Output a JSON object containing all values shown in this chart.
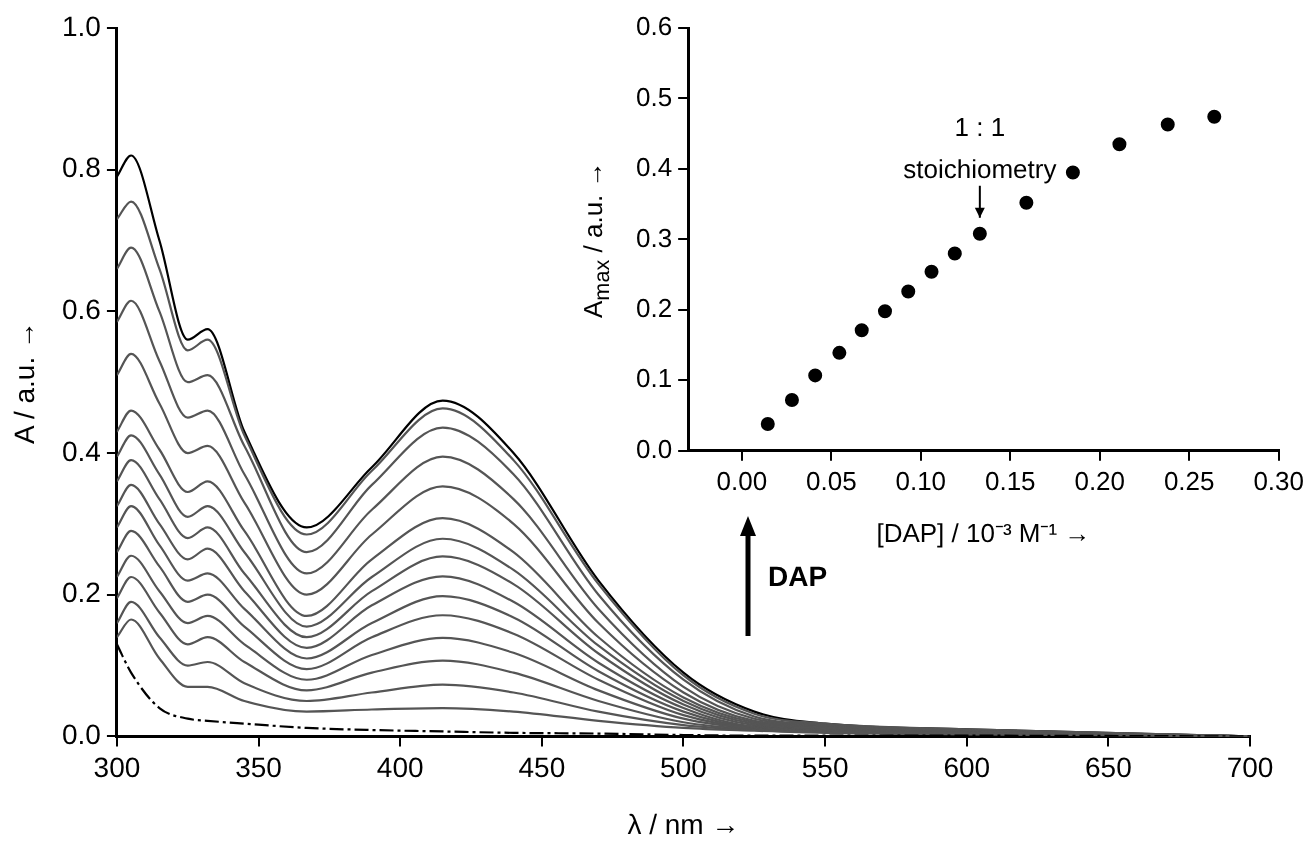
{
  "chart_data": [
    {
      "type": "line",
      "xlabel": "λ / nm →",
      "ylabel": "A / a.u. →",
      "annotations": [
        "DAP"
      ],
      "x": [
        300,
        305,
        315,
        325,
        332,
        345,
        367,
        390,
        415,
        440,
        470,
        500,
        525,
        550,
        600,
        700
      ],
      "xlim": [
        300,
        700
      ],
      "xticks": [
        300,
        350,
        400,
        450,
        500,
        550,
        600,
        650,
        700
      ],
      "ylim": [
        0,
        1
      ],
      "yticks": [
        {
          "value": 0,
          "label": "0.0"
        },
        {
          "value": 0.2,
          "label": "0.2"
        },
        {
          "value": 0.4,
          "label": "0.4"
        },
        {
          "value": 0.6,
          "label": "0.6"
        },
        {
          "value": 0.8,
          "label": "0.8"
        },
        {
          "value": 1,
          "label": "1.0"
        }
      ],
      "grid": false,
      "legend": false,
      "marker": "none",
      "line_style": "solid",
      "series": [
        {
          "color": "#000000",
          "line_style": "dashed",
          "values": [
            0.13,
            0.09,
            0.04,
            0.025,
            0.022,
            0.018,
            0.012,
            0.009,
            0.007,
            0.005,
            0.004,
            0.002,
            0.001,
            0.001,
            0.001,
            0
          ]
        },
        {
          "color": "#555555",
          "values": [
            0.14,
            0.165,
            0.11,
            0.07,
            0.07,
            0.05,
            0.035,
            0.038,
            0.04,
            0.035,
            0.022,
            0.012,
            0.008,
            0.005,
            0.003,
            0
          ]
        },
        {
          "color": "#555555",
          "values": [
            0.16,
            0.19,
            0.14,
            0.1,
            0.105,
            0.075,
            0.05,
            0.062,
            0.073,
            0.062,
            0.035,
            0.016,
            0.009,
            0.006,
            0.004,
            0
          ]
        },
        {
          "color": "#555555",
          "values": [
            0.195,
            0.225,
            0.175,
            0.13,
            0.14,
            0.105,
            0.065,
            0.09,
            0.107,
            0.09,
            0.05,
            0.02,
            0.01,
            0.007,
            0.004,
            0
          ]
        },
        {
          "color": "#555555",
          "values": [
            0.225,
            0.255,
            0.205,
            0.16,
            0.17,
            0.13,
            0.08,
            0.115,
            0.139,
            0.118,
            0.065,
            0.025,
            0.011,
            0.008,
            0.005,
            0
          ]
        },
        {
          "color": "#555555",
          "values": [
            0.26,
            0.29,
            0.24,
            0.19,
            0.2,
            0.155,
            0.095,
            0.14,
            0.171,
            0.145,
            0.08,
            0.03,
            0.012,
            0.009,
            0.005,
            0
          ]
        },
        {
          "color": "#555555",
          "values": [
            0.295,
            0.325,
            0.27,
            0.22,
            0.23,
            0.18,
            0.11,
            0.16,
            0.198,
            0.168,
            0.092,
            0.035,
            0.013,
            0.01,
            0.006,
            0
          ]
        },
        {
          "color": "#555555",
          "values": [
            0.325,
            0.355,
            0.3,
            0.25,
            0.265,
            0.205,
            0.125,
            0.185,
            0.226,
            0.19,
            0.104,
            0.04,
            0.014,
            0.011,
            0.006,
            0
          ]
        },
        {
          "color": "#555555",
          "values": [
            0.36,
            0.39,
            0.335,
            0.28,
            0.295,
            0.23,
            0.14,
            0.205,
            0.254,
            0.215,
            0.117,
            0.045,
            0.016,
            0.012,
            0.007,
            0
          ]
        },
        {
          "color": "#555555",
          "values": [
            0.395,
            0.425,
            0.37,
            0.31,
            0.325,
            0.26,
            0.155,
            0.225,
            0.279,
            0.235,
            0.128,
            0.05,
            0.018,
            0.013,
            0.007,
            0
          ]
        },
        {
          "color": "#555555",
          "values": [
            0.43,
            0.46,
            0.405,
            0.345,
            0.36,
            0.29,
            0.17,
            0.25,
            0.308,
            0.26,
            0.14,
            0.055,
            0.02,
            0.014,
            0.008,
            0
          ]
        },
        {
          "color": "#555555",
          "values": [
            0.51,
            0.54,
            0.47,
            0.4,
            0.41,
            0.33,
            0.2,
            0.285,
            0.353,
            0.3,
            0.16,
            0.062,
            0.022,
            0.015,
            0.008,
            0
          ]
        },
        {
          "color": "#555555",
          "values": [
            0.585,
            0.615,
            0.53,
            0.45,
            0.46,
            0.37,
            0.23,
            0.32,
            0.395,
            0.335,
            0.18,
            0.07,
            0.025,
            0.016,
            0.009,
            0
          ]
        },
        {
          "color": "#555555",
          "values": [
            0.66,
            0.69,
            0.6,
            0.5,
            0.51,
            0.41,
            0.26,
            0.355,
            0.436,
            0.37,
            0.2,
            0.08,
            0.028,
            0.017,
            0.009,
            0
          ]
        },
        {
          "color": "#555555",
          "values": [
            0.73,
            0.755,
            0.66,
            0.545,
            0.56,
            0.425,
            0.285,
            0.375,
            0.463,
            0.39,
            0.215,
            0.086,
            0.032,
            0.018,
            0.01,
            0
          ]
        },
        {
          "color": "#000000",
          "values": [
            0.79,
            0.82,
            0.7,
            0.56,
            0.575,
            0.43,
            0.295,
            0.38,
            0.474,
            0.4,
            0.22,
            0.09,
            0.035,
            0.018,
            0.01,
            0
          ]
        }
      ]
    },
    {
      "type": "scatter",
      "xlabel": "[DAP] / 10⁻³ M⁻¹ →",
      "ylabel": "A$_{max}$ / a.u. →",
      "annotations": [
        {
          "text": "1 : 1\nstoichiometry",
          "x": 0.133,
          "y": 0.308
        }
      ],
      "xlim": [
        -0.03,
        0.3
      ],
      "xticks": [
        {
          "value": 0,
          "label": "0.00"
        },
        0.05,
        {
          "value": 0.1,
          "label": "0.10"
        },
        0.15,
        {
          "value": 0.2,
          "label": "0.20"
        },
        0.25,
        {
          "value": 0.3,
          "label": "0.30"
        }
      ],
      "ylim": [
        0,
        0.6
      ],
      "yticks": [
        {
          "value": 0,
          "label": "0.0"
        },
        0.1,
        0.2,
        0.3,
        0.4,
        0.5,
        0.6
      ],
      "grid": false,
      "legend": false,
      "marker": "circle",
      "x": [
        0.0145,
        0.028,
        0.041,
        0.0545,
        0.067,
        0.08,
        0.093,
        0.106,
        0.119,
        0.133,
        0.159,
        0.185,
        0.211,
        0.238,
        0.264
      ],
      "values": [
        0.038,
        0.072,
        0.107,
        0.139,
        0.171,
        0.198,
        0.226,
        0.254,
        0.28,
        0.308,
        0.352,
        0.395,
        0.435,
        0.463,
        0.474
      ],
      "color": "#000000"
    }
  ]
}
